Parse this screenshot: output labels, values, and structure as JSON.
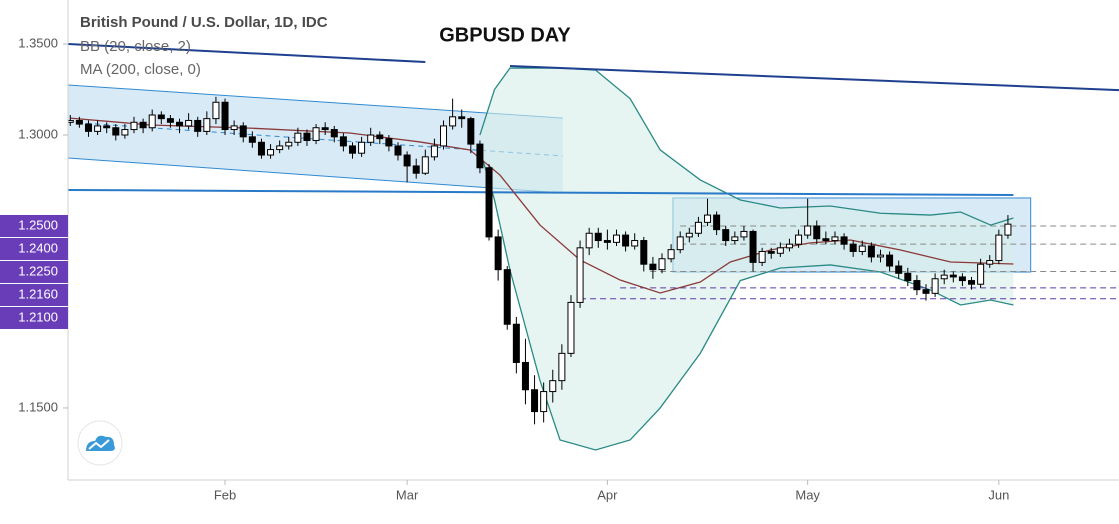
{
  "chart_data": {
    "type": "candlestick",
    "title": "GBPUSD DAY",
    "symbol": "British Pound / U.S. Dollar, 1D, IDC",
    "up_color": "#ffffff",
    "down_color": "#000000",
    "xlim": [
      -0.25,
      115.2
    ],
    "ylim": [
      1.1104,
      1.3742
    ],
    "xticks": [
      {
        "value": 17,
        "label": "Feb"
      },
      {
        "value": 37,
        "label": "Mar"
      },
      {
        "value": 59,
        "label": "Apr"
      },
      {
        "value": 81,
        "label": "May"
      },
      {
        "value": 102,
        "label": "Jun"
      }
    ],
    "yticks": [
      {
        "value": 1.15,
        "label": "1.1500"
      },
      {
        "value": 1.3,
        "label": "1.3000"
      },
      {
        "value": 1.35,
        "label": "1.3500"
      }
    ],
    "x": [
      0,
      1,
      2,
      3,
      4,
      5,
      6,
      7,
      8,
      9,
      10,
      11,
      12,
      13,
      14,
      15,
      16,
      17,
      18,
      19,
      20,
      21,
      22,
      23,
      24,
      25,
      26,
      27,
      28,
      29,
      30,
      31,
      32,
      33,
      34,
      35,
      36,
      37,
      38,
      39,
      40,
      41,
      42,
      43,
      44,
      45,
      46,
      47,
      48,
      49,
      50,
      51,
      52,
      53,
      54,
      55,
      56,
      57,
      58,
      59,
      60,
      61,
      62,
      63,
      64,
      65,
      66,
      67,
      68,
      69,
      70,
      71,
      72,
      73,
      74,
      75,
      76,
      77,
      78,
      79,
      80,
      81,
      82,
      83,
      84,
      85,
      86,
      87,
      88,
      89,
      90,
      91,
      92,
      93,
      94,
      95,
      96,
      97,
      98,
      99,
      100,
      101,
      102,
      103
    ],
    "ohlc": [
      [
        1.307,
        1.311,
        1.305,
        1.308
      ],
      [
        1.308,
        1.31,
        1.304,
        1.306
      ],
      [
        1.306,
        1.308,
        1.299,
        1.302
      ],
      [
        1.302,
        1.308,
        1.3,
        1.305
      ],
      [
        1.305,
        1.307,
        1.301,
        1.304
      ],
      [
        1.304,
        1.306,
        1.297,
        1.3
      ],
      [
        1.3,
        1.306,
        1.298,
        1.303
      ],
      [
        1.303,
        1.31,
        1.301,
        1.307
      ],
      [
        1.307,
        1.309,
        1.301,
        1.304
      ],
      [
        1.304,
        1.314,
        1.302,
        1.311
      ],
      [
        1.311,
        1.313,
        1.306,
        1.309
      ],
      [
        1.309,
        1.311,
        1.304,
        1.307
      ],
      [
        1.307,
        1.309,
        1.301,
        1.305
      ],
      [
        1.305,
        1.312,
        1.303,
        1.308
      ],
      [
        1.308,
        1.31,
        1.299,
        1.302
      ],
      [
        1.302,
        1.313,
        1.3,
        1.309
      ],
      [
        1.309,
        1.321,
        1.306,
        1.318
      ],
      [
        1.318,
        1.32,
        1.3,
        1.303
      ],
      [
        1.303,
        1.308,
        1.3,
        1.305
      ],
      [
        1.305,
        1.307,
        1.296,
        1.299
      ],
      [
        1.299,
        1.302,
        1.293,
        1.296
      ],
      [
        1.296,
        1.298,
        1.287,
        1.289
      ],
      [
        1.289,
        1.295,
        1.287,
        1.292
      ],
      [
        1.292,
        1.297,
        1.29,
        1.294
      ],
      [
        1.294,
        1.299,
        1.292,
        1.296
      ],
      [
        1.296,
        1.304,
        1.294,
        1.301
      ],
      [
        1.301,
        1.303,
        1.294,
        1.297
      ],
      [
        1.297,
        1.306,
        1.295,
        1.304
      ],
      [
        1.304,
        1.307,
        1.3,
        1.303
      ],
      [
        1.303,
        1.305,
        1.296,
        1.299
      ],
      [
        1.299,
        1.301,
        1.291,
        1.294
      ],
      [
        1.294,
        1.296,
        1.287,
        1.29
      ],
      [
        1.29,
        1.299,
        1.288,
        1.296
      ],
      [
        1.296,
        1.304,
        1.294,
        1.3
      ],
      [
        1.3,
        1.302,
        1.295,
        1.298
      ],
      [
        1.298,
        1.3,
        1.291,
        1.294
      ],
      [
        1.294,
        1.296,
        1.286,
        1.289
      ],
      [
        1.289,
        1.291,
        1.274,
        1.283
      ],
      [
        1.283,
        1.287,
        1.276,
        1.279
      ],
      [
        1.279,
        1.292,
        1.278,
        1.288
      ],
      [
        1.288,
        1.298,
        1.286,
        1.294
      ],
      [
        1.294,
        1.308,
        1.292,
        1.305
      ],
      [
        1.305,
        1.32,
        1.303,
        1.31
      ],
      [
        1.31,
        1.314,
        1.304,
        1.309
      ],
      [
        1.309,
        1.31,
        1.29,
        1.295
      ],
      [
        1.295,
        1.297,
        1.279,
        1.282
      ],
      [
        1.282,
        1.284,
        1.242,
        1.244
      ],
      [
        1.244,
        1.248,
        1.22,
        1.226
      ],
      [
        1.226,
        1.228,
        1.193,
        1.196
      ],
      [
        1.196,
        1.2,
        1.169,
        1.175
      ],
      [
        1.175,
        1.188,
        1.152,
        1.16
      ],
      [
        1.16,
        1.168,
        1.141,
        1.148
      ],
      [
        1.148,
        1.164,
        1.142,
        1.159
      ],
      [
        1.159,
        1.171,
        1.153,
        1.165
      ],
      [
        1.165,
        1.185,
        1.16,
        1.18
      ],
      [
        1.18,
        1.212,
        1.178,
        1.208
      ],
      [
        1.208,
        1.242,
        1.205,
        1.238
      ],
      [
        1.238,
        1.249,
        1.234,
        1.246
      ],
      [
        1.246,
        1.249,
        1.238,
        1.242
      ],
      [
        1.242,
        1.248,
        1.237,
        1.241
      ],
      [
        1.241,
        1.248,
        1.239,
        1.245
      ],
      [
        1.245,
        1.247,
        1.236,
        1.239
      ],
      [
        1.239,
        1.246,
        1.237,
        1.242
      ],
      [
        1.242,
        1.244,
        1.225,
        1.229
      ],
      [
        1.229,
        1.233,
        1.221,
        1.226
      ],
      [
        1.226,
        1.235,
        1.224,
        1.232
      ],
      [
        1.232,
        1.24,
        1.23,
        1.237
      ],
      [
        1.237,
        1.247,
        1.235,
        1.244
      ],
      [
        1.244,
        1.249,
        1.241,
        1.246
      ],
      [
        1.246,
        1.255,
        1.244,
        1.252
      ],
      [
        1.252,
        1.265,
        1.25,
        1.256
      ],
      [
        1.256,
        1.258,
        1.245,
        1.248
      ],
      [
        1.248,
        1.25,
        1.239,
        1.242
      ],
      [
        1.242,
        1.247,
        1.24,
        1.244
      ],
      [
        1.244,
        1.25,
        1.242,
        1.247
      ],
      [
        1.247,
        1.248,
        1.225,
        1.23
      ],
      [
        1.23,
        1.238,
        1.228,
        1.236
      ],
      [
        1.236,
        1.238,
        1.232,
        1.235
      ],
      [
        1.235,
        1.241,
        1.233,
        1.238
      ],
      [
        1.238,
        1.243,
        1.236,
        1.24
      ],
      [
        1.24,
        1.248,
        1.238,
        1.245
      ],
      [
        1.245,
        1.265,
        1.243,
        1.25
      ],
      [
        1.25,
        1.253,
        1.24,
        1.243
      ],
      [
        1.243,
        1.247,
        1.24,
        1.242
      ],
      [
        1.242,
        1.247,
        1.24,
        1.244
      ],
      [
        1.244,
        1.246,
        1.237,
        1.24
      ],
      [
        1.24,
        1.242,
        1.233,
        1.236
      ],
      [
        1.236,
        1.242,
        1.234,
        1.239
      ],
      [
        1.239,
        1.241,
        1.23,
        1.233
      ],
      [
        1.233,
        1.237,
        1.23,
        1.234
      ],
      [
        1.234,
        1.236,
        1.225,
        1.228
      ],
      [
        1.228,
        1.231,
        1.221,
        1.224
      ],
      [
        1.224,
        1.227,
        1.217,
        1.22
      ],
      [
        1.22,
        1.223,
        1.212,
        1.215
      ],
      [
        1.215,
        1.218,
        1.209,
        1.213
      ],
      [
        1.213,
        1.224,
        1.211,
        1.221
      ],
      [
        1.221,
        1.226,
        1.218,
        1.223
      ],
      [
        1.223,
        1.225,
        1.219,
        1.222
      ],
      [
        1.222,
        1.224,
        1.217,
        1.22
      ],
      [
        1.22,
        1.222,
        1.215,
        1.218
      ],
      [
        1.218,
        1.232,
        1.216,
        1.229
      ],
      [
        1.229,
        1.234,
        1.227,
        1.231
      ],
      [
        1.231,
        1.248,
        1.229,
        1.245
      ],
      [
        1.245,
        1.256,
        1.243,
        1.251
      ]
    ],
    "bb": {
      "name": "BB (20, close, 2)",
      "color": "#2a8a84",
      "fill": "#d6ece9",
      "x": [
        45.0,
        46.6,
        48.3,
        51.6,
        53.8,
        57.7,
        61.5,
        64.8,
        69.2,
        73.6,
        78.0,
        83.5,
        89.0,
        94.5,
        97.8,
        101.1,
        103.6
      ],
      "upper": [
        1.3,
        1.325,
        1.3368,
        1.3368,
        1.3368,
        1.3357,
        1.32,
        1.2918,
        1.2753,
        1.2643,
        1.2599,
        1.261,
        1.257,
        1.256,
        1.2577,
        1.2505,
        1.2544
      ],
      "lower": [
        1.2918,
        1.2643,
        1.2258,
        1.165,
        1.1324,
        1.1269,
        1.1324,
        1.15,
        1.18,
        1.22,
        1.2269,
        1.2286,
        1.2247,
        1.2148,
        1.2066,
        1.2093,
        1.2066
      ]
    },
    "ma": {
      "name": "MA (200, close, 0)",
      "color": "#8b3a3a",
      "x": [
        0,
        8.8,
        19.7,
        30.7,
        38.4,
        43.9,
        47.2,
        51.6,
        56.0,
        60.4,
        64.8,
        69.2,
        72.5,
        76.9,
        81.3,
        85.7,
        91.2,
        96.7,
        103.6
      ],
      "values": [
        1.3093,
        1.3055,
        1.3038,
        1.3011,
        1.2962,
        1.2918,
        1.278,
        1.2505,
        1.2313,
        1.2203,
        1.2132,
        1.2192,
        1.2302,
        1.2368,
        1.2407,
        1.2423,
        1.2368,
        1.2302,
        1.2291
      ]
    },
    "trend_lines": [
      {
        "x": [
          -0.25,
          39.0
        ],
        "y": [
          1.35,
          1.3401
        ],
        "color": "#1f3f8f"
      },
      {
        "x": [
          48.3,
          115.2
        ],
        "y": [
          1.3379,
          1.3247
        ],
        "color": "#1f3f8f"
      },
      {
        "x": [
          -0.25,
          103.6
        ],
        "y": [
          1.2698,
          1.267
        ],
        "color": "#2979c9"
      }
    ],
    "channel": {
      "x": [
        -0.25,
        54.1
      ],
      "top": [
        1.3275,
        1.3093
      ],
      "bottom": [
        1.2874,
        1.2681
      ],
      "mid": [
        1.3071,
        1.2885
      ],
      "color": "#2f8ad0"
    },
    "box": {
      "x": [
        66.2,
        105.5
      ],
      "y": [
        1.2654,
        1.2247
      ],
      "color": "#2f8ad0"
    },
    "levels": [
      {
        "value": 1.25,
        "label": "1.2500",
        "from": 67.0,
        "color": "#8a8a8a"
      },
      {
        "value": 1.24,
        "label": "1.2400",
        "from": 67.0,
        "color": "#8a8a8a"
      },
      {
        "value": 1.225,
        "label": "1.2250",
        "from": 63.7,
        "color": "#8a8a8a"
      },
      {
        "value": 1.216,
        "label": "1.2160",
        "from": 60.4,
        "color": "#5b3aa8"
      },
      {
        "value": 1.21,
        "label": "1.2100",
        "from": 56.0,
        "color": "#5b3aa8"
      }
    ],
    "level_label_color": "#6a3db8"
  }
}
